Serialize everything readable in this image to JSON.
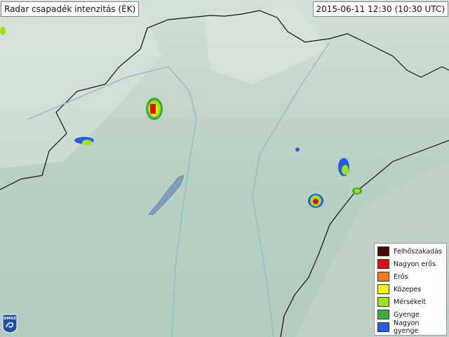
{
  "title": "Radar csapadék intenzitás (ÉK)",
  "timestamp": "2015-06-11 12:30 (10:30 UTC)",
  "legend": [
    {
      "label": "Felhőszakadás",
      "color": "#4a0606"
    },
    {
      "label": "Nagyon erős",
      "color": "#e01010"
    },
    {
      "label": "Erős",
      "color": "#f07a18"
    },
    {
      "label": "Közepes",
      "color": "#f4f20a"
    },
    {
      "label": "Mérsékelt",
      "color": "#9ae21a"
    },
    {
      "label": "Gyenge",
      "color": "#3eaa3a"
    },
    {
      "label": "Nagyon gyenge",
      "color": "#2a5ae8"
    }
  ],
  "logo": "OMSZ"
}
